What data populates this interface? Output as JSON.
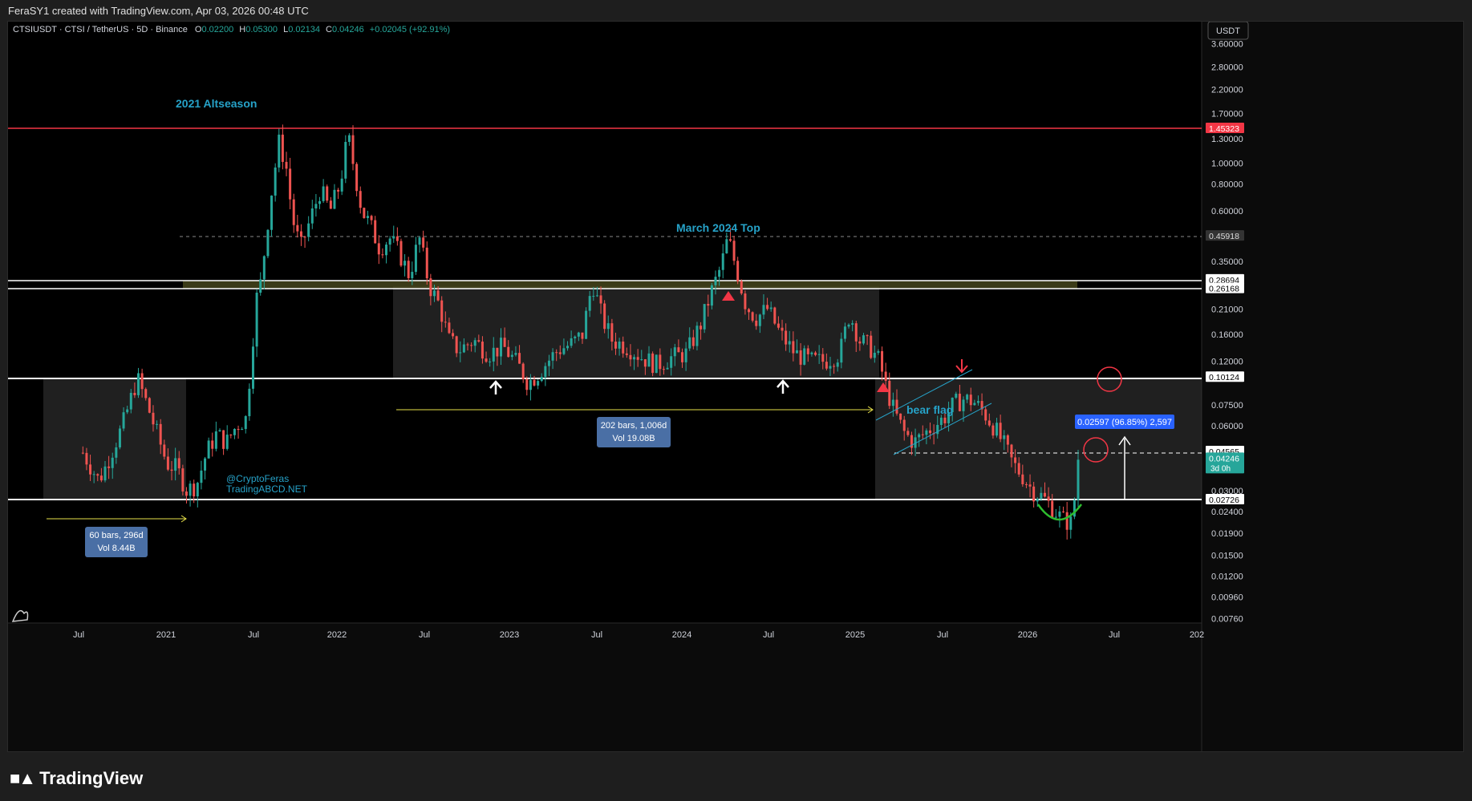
{
  "header": {
    "text": "FeraSY1 created with TradingView.com, Apr 03, 2026 00:48 UTC"
  },
  "legend": {
    "symbol": "CTSIUSDT · CTSI / TetherUS · 5D · Binance",
    "o_label": "O",
    "o": "0.02200",
    "h_label": "H",
    "h": "0.05300",
    "l_label": "L",
    "l": "0.02134",
    "c_label": "C",
    "c": "0.04246",
    "change": "+0.02045 (+92.91%)"
  },
  "currency": "USDT",
  "footer": {
    "brand": "TradingView"
  },
  "colors": {
    "up": "#26a69a",
    "down": "#ef5350",
    "red_line": "#f23645",
    "accent": "#2196f3",
    "annotation": "#26a2c8",
    "yellow": "#e8e24a"
  },
  "chart_data": {
    "type": "candlestick",
    "y_scale": "log",
    "y_ticks": [
      "3.60000",
      "2.80000",
      "2.20000",
      "1.70000",
      "1.30000",
      "1.00000",
      "0.80000",
      "0.60000",
      "0.35000",
      "0.21000",
      "0.16000",
      "0.12000",
      "0.07500",
      "0.06000",
      "0.03000",
      "0.02400",
      "0.01900",
      "0.01500",
      "0.01200",
      "0.00960",
      "0.00760"
    ],
    "x_ticks": [
      "Jul",
      "2021",
      "Jul",
      "2022",
      "Jul",
      "2023",
      "Jul",
      "2024",
      "Jul",
      "2025",
      "Jul",
      "2026",
      "Jul",
      "202"
    ],
    "price_labels": [
      {
        "text": "1.45323",
        "value": 1.45323,
        "style": "red"
      },
      {
        "text": "0.45918",
        "value": 0.45918,
        "style": "grey"
      },
      {
        "text": "0.28694",
        "value": 0.28694,
        "style": "white"
      },
      {
        "text": "0.26168",
        "value": 0.26168,
        "style": "white"
      },
      {
        "text": "0.10124",
        "value": 0.10124,
        "style": "white"
      },
      {
        "text": "0.04565",
        "value": 0.04565,
        "style": "white"
      },
      {
        "text": "0.04246",
        "value": 0.04246,
        "style": "green",
        "sub": "3d 0h"
      },
      {
        "text": "0.02726",
        "value": 0.02726,
        "style": "white"
      }
    ],
    "annotations": {
      "altseason": "2021 Altseason",
      "march_top": "March 2024 Top",
      "bear_flag": "bear flag",
      "author1": "@CryptoFeras",
      "author2": "TradingABCD.NET",
      "range1_line1": "60 bars, 296d",
      "range1_line2": "Vol 8.44B",
      "range2_line1": "202 bars, 1,006d",
      "range2_line2": "Vol 19.08B",
      "measure": "0.02597 (96.85%) 2,597"
    },
    "price_path": [
      [
        0.04,
        0.045
      ],
      [
        0.055,
        0.034
      ],
      [
        0.06,
        0.036
      ],
      [
        0.08,
        0.06
      ],
      [
        0.095,
        0.1
      ],
      [
        0.105,
        0.075
      ],
      [
        0.115,
        0.055
      ],
      [
        0.125,
        0.04
      ],
      [
        0.135,
        0.038
      ],
      [
        0.145,
        0.03
      ],
      [
        0.155,
        0.032
      ],
      [
        0.165,
        0.045
      ],
      [
        0.175,
        0.055
      ],
      [
        0.185,
        0.05
      ],
      [
        0.195,
        0.06
      ],
      [
        0.205,
        0.065
      ],
      [
        0.21,
        0.12
      ],
      [
        0.215,
        0.23
      ],
      [
        0.22,
        0.28
      ],
      [
        0.225,
        0.45
      ],
      [
        0.23,
        0.7
      ],
      [
        0.238,
        1.25
      ],
      [
        0.245,
        1.0
      ],
      [
        0.252,
        0.55
      ],
      [
        0.26,
        0.4
      ],
      [
        0.27,
        0.55
      ],
      [
        0.28,
        0.75
      ],
      [
        0.29,
        0.6
      ],
      [
        0.3,
        0.8
      ],
      [
        0.308,
        1.35
      ],
      [
        0.315,
        0.9
      ],
      [
        0.322,
        0.6
      ],
      [
        0.33,
        0.52
      ],
      [
        0.34,
        0.4
      ],
      [
        0.35,
        0.45
      ],
      [
        0.36,
        0.38
      ],
      [
        0.37,
        0.3
      ],
      [
        0.38,
        0.45
      ],
      [
        0.39,
        0.27
      ],
      [
        0.4,
        0.22
      ],
      [
        0.41,
        0.15
      ],
      [
        0.42,
        0.135
      ],
      [
        0.435,
        0.15
      ],
      [
        0.45,
        0.13
      ],
      [
        0.465,
        0.14
      ],
      [
        0.48,
        0.115
      ],
      [
        0.49,
        0.095
      ],
      [
        0.5,
        0.105
      ],
      [
        0.51,
        0.12
      ],
      [
        0.52,
        0.135
      ],
      [
        0.535,
        0.145
      ],
      [
        0.545,
        0.16
      ],
      [
        0.555,
        0.28
      ],
      [
        0.565,
        0.19
      ],
      [
        0.575,
        0.15
      ],
      [
        0.59,
        0.14
      ],
      [
        0.605,
        0.125
      ],
      [
        0.62,
        0.115
      ],
      [
        0.635,
        0.125
      ],
      [
        0.65,
        0.13
      ],
      [
        0.665,
        0.18
      ],
      [
        0.675,
        0.25
      ],
      [
        0.685,
        0.33
      ],
      [
        0.692,
        0.45
      ],
      [
        0.7,
        0.33
      ],
      [
        0.71,
        0.22
      ],
      [
        0.72,
        0.19
      ],
      [
        0.732,
        0.21
      ],
      [
        0.745,
        0.16
      ],
      [
        0.76,
        0.13
      ],
      [
        0.775,
        0.12
      ],
      [
        0.79,
        0.12
      ],
      [
        0.805,
        0.13
      ],
      [
        0.815,
        0.2
      ],
      [
        0.825,
        0.15
      ],
      [
        0.835,
        0.14
      ],
      [
        0.845,
        0.12
      ],
      [
        0.852,
        0.09
      ],
      [
        0.86,
        0.07
      ],
      [
        0.87,
        0.056
      ],
      [
        0.88,
        0.05
      ],
      [
        0.89,
        0.055
      ],
      [
        0.9,
        0.06
      ],
      [
        0.91,
        0.065
      ],
      [
        0.92,
        0.075
      ],
      [
        0.93,
        0.08
      ],
      [
        0.94,
        0.078
      ],
      [
        0.95,
        0.07
      ],
      [
        0.96,
        0.06
      ],
      [
        0.97,
        0.05
      ],
      [
        0.98,
        0.04
      ],
      [
        0.99,
        0.035
      ],
      [
        1.0,
        0.03
      ],
      [
        1.01,
        0.028
      ],
      [
        1.02,
        0.025
      ],
      [
        1.03,
        0.022
      ],
      [
        1.04,
        0.021
      ],
      [
        1.046,
        0.04246
      ]
    ]
  }
}
